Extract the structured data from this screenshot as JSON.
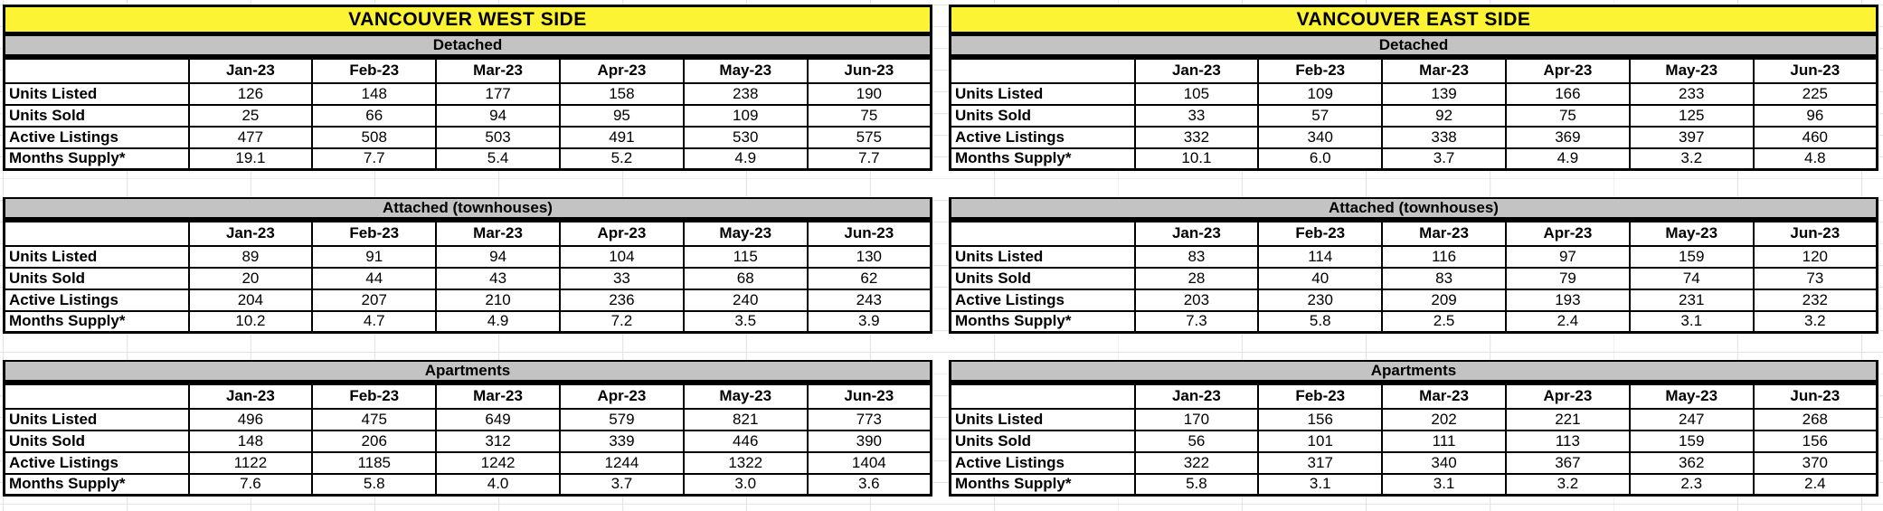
{
  "colors": {
    "title_bg": "#fdf335",
    "section_bg": "#c3c3c3",
    "border": "#000000",
    "gridline": "#e2e2e2"
  },
  "months": [
    "Jan-23",
    "Feb-23",
    "Mar-23",
    "Apr-23",
    "May-23",
    "Jun-23"
  ],
  "row_labels": [
    "Units Listed",
    "Units Sold",
    "Active Listings",
    "Months Supply*"
  ],
  "boards": [
    {
      "title": "VANCOUVER WEST SIDE",
      "sections": [
        {
          "name": "Detached",
          "rows": [
            {
              "label": "Units Listed",
              "values": [
                "126",
                "148",
                "177",
                "158",
                "238",
                "190"
              ]
            },
            {
              "label": "Units Sold",
              "values": [
                "25",
                "66",
                "94",
                "95",
                "109",
                "75"
              ]
            },
            {
              "label": "Active Listings",
              "values": [
                "477",
                "508",
                "503",
                "491",
                "530",
                "575"
              ]
            },
            {
              "label": "Months Supply*",
              "values": [
                "19.1",
                "7.7",
                "5.4",
                "5.2",
                "4.9",
                "7.7"
              ]
            }
          ]
        },
        {
          "name": "Attached (townhouses)",
          "rows": [
            {
              "label": "Units Listed",
              "values": [
                "89",
                "91",
                "94",
                "104",
                "115",
                "130"
              ]
            },
            {
              "label": "Units Sold",
              "values": [
                "20",
                "44",
                "43",
                "33",
                "68",
                "62"
              ]
            },
            {
              "label": "Active Listings",
              "values": [
                "204",
                "207",
                "210",
                "236",
                "240",
                "243"
              ]
            },
            {
              "label": "Months Supply*",
              "values": [
                "10.2",
                "4.7",
                "4.9",
                "7.2",
                "3.5",
                "3.9"
              ]
            }
          ]
        },
        {
          "name": "Apartments",
          "rows": [
            {
              "label": "Units Listed",
              "values": [
                "496",
                "475",
                "649",
                "579",
                "821",
                "773"
              ]
            },
            {
              "label": "Units Sold",
              "values": [
                "148",
                "206",
                "312",
                "339",
                "446",
                "390"
              ]
            },
            {
              "label": "Active Listings",
              "values": [
                "1122",
                "1185",
                "1242",
                "1244",
                "1322",
                "1404"
              ]
            },
            {
              "label": "Months Supply*",
              "values": [
                "7.6",
                "5.8",
                "4.0",
                "3.7",
                "3.0",
                "3.6"
              ]
            }
          ]
        }
      ]
    },
    {
      "title": "VANCOUVER EAST SIDE",
      "sections": [
        {
          "name": "Detached",
          "rows": [
            {
              "label": "Units Listed",
              "values": [
                "105",
                "109",
                "139",
                "166",
                "233",
                "225"
              ]
            },
            {
              "label": "Units Sold",
              "values": [
                "33",
                "57",
                "92",
                "75",
                "125",
                "96"
              ]
            },
            {
              "label": "Active Listings",
              "values": [
                "332",
                "340",
                "338",
                "369",
                "397",
                "460"
              ]
            },
            {
              "label": "Months Supply*",
              "values": [
                "10.1",
                "6.0",
                "3.7",
                "4.9",
                "3.2",
                "4.8"
              ]
            }
          ]
        },
        {
          "name": "Attached (townhouses)",
          "rows": [
            {
              "label": "Units Listed",
              "values": [
                "83",
                "114",
                "116",
                "97",
                "159",
                "120"
              ]
            },
            {
              "label": "Units Sold",
              "values": [
                "28",
                "40",
                "83",
                "79",
                "74",
                "73"
              ]
            },
            {
              "label": "Active Listings",
              "values": [
                "203",
                "230",
                "209",
                "193",
                "231",
                "232"
              ]
            },
            {
              "label": "Months Supply*",
              "values": [
                "7.3",
                "5.8",
                "2.5",
                "2.4",
                "3.1",
                "3.2"
              ]
            }
          ]
        },
        {
          "name": "Apartments",
          "rows": [
            {
              "label": "Units Listed",
              "values": [
                "170",
                "156",
                "202",
                "221",
                "247",
                "268"
              ]
            },
            {
              "label": "Units Sold",
              "values": [
                "56",
                "101",
                "111",
                "113",
                "159",
                "156"
              ]
            },
            {
              "label": "Active Listings",
              "values": [
                "322",
                "317",
                "340",
                "367",
                "362",
                "370"
              ]
            },
            {
              "label": "Months Supply*",
              "values": [
                "5.8",
                "3.1",
                "3.1",
                "3.2",
                "2.3",
                "2.4"
              ]
            }
          ]
        }
      ]
    }
  ]
}
